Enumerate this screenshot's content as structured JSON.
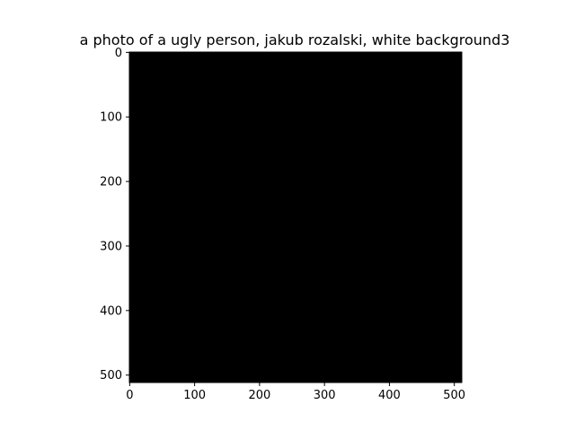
{
  "chart_data": {
    "type": "heatmap",
    "title": "a photo of a ugly person, jakub rozalski, white background3",
    "xlabel": "",
    "ylabel": "",
    "x_ticks": [
      0,
      100,
      200,
      300,
      400,
      500
    ],
    "y_ticks": [
      0,
      100,
      200,
      300,
      400,
      500
    ],
    "xlim": [
      -0.5,
      511.5
    ],
    "ylim": [
      511.5,
      -0.5
    ],
    "image": {
      "width": 512,
      "height": 512,
      "fill": "#000000",
      "description": "uniform black"
    },
    "grid": false
  },
  "colors": {
    "background": "#ffffff",
    "image": "#000000",
    "axis": "#000000",
    "text": "#000000"
  }
}
